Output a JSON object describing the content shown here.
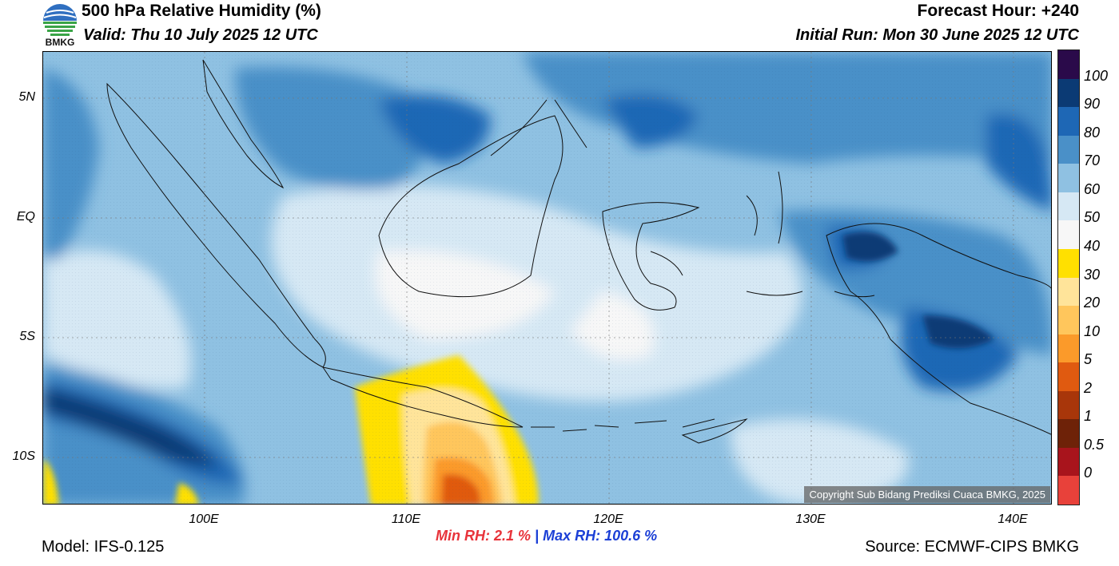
{
  "header": {
    "title": "500 hPa Relative Humidity (%)",
    "valid": "Valid: Thu 10 July 2025 12 UTC",
    "forecast_hour": "Forecast Hour: +240",
    "initial_run": "Initial Run: Mon 30 June 2025 12 UTC",
    "logo_text": "BMKG"
  },
  "map": {
    "lat_labels": [
      "5N",
      "EQ",
      "5S",
      "10S"
    ],
    "lon_labels": [
      "100E",
      "110E",
      "120E",
      "130E",
      "140E"
    ],
    "copyright": "Copyright Sub Bidang Prediksi Cuaca BMKG, 2025"
  },
  "colorbar": {
    "labels": [
      "100",
      "90",
      "80",
      "70",
      "60",
      "50",
      "40",
      "30",
      "20",
      "10",
      "5",
      "2",
      "1",
      "0.5",
      "0"
    ],
    "colors": [
      "#2a0a4a",
      "#0b3a74",
      "#1e67b5",
      "#4a90c8",
      "#8fc1e2",
      "#d6e8f4",
      "#f7f7f7",
      "#ffe000",
      "#ffe49a",
      "#ffc65c",
      "#fb9a2a",
      "#e05a10",
      "#a8360a",
      "#6e2208",
      "#a8141c",
      "#e8413a"
    ]
  },
  "footer": {
    "min_label": "Min RH:",
    "min_value": "2.1 %",
    "separator": "|",
    "max_label": "Max RH:",
    "max_value": "100.6 %",
    "model": "Model: IFS-0.125",
    "source": "Source: ECMWF-CIPS BMKG"
  }
}
